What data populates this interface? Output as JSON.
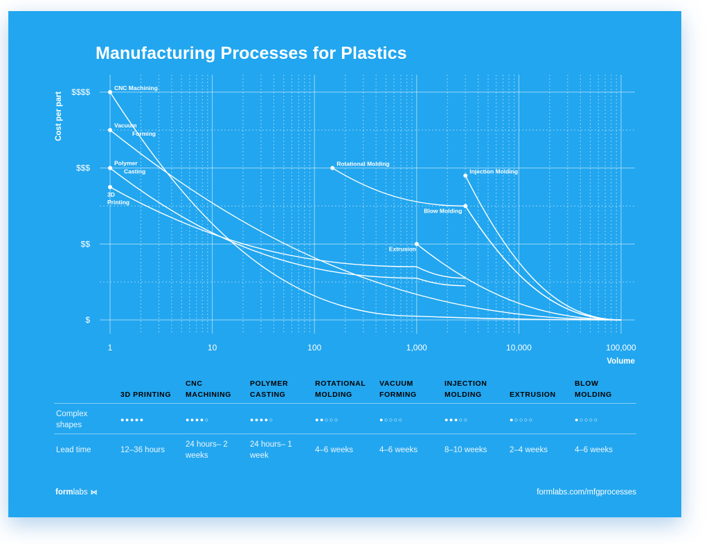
{
  "chart_data": {
    "type": "line",
    "title": "Manufacturing Processes for Plastics",
    "xlabel": "Volume",
    "ylabel": "Cost per part",
    "x_scale": "log",
    "xlim": [
      1,
      100000
    ],
    "x_ticks": [
      1,
      10,
      100,
      1000,
      10000,
      100000
    ],
    "x_tick_labels": [
      "1",
      "10",
      "100",
      "1,000",
      "10,000",
      "100,000"
    ],
    "y_ticks": [
      1,
      2,
      3,
      4
    ],
    "y_tick_labels": [
      "$",
      "$$",
      "$$$",
      "$$$$"
    ],
    "ylim": [
      1,
      4
    ],
    "grid": true,
    "series": [
      {
        "name": "CNC Machining",
        "points": [
          [
            1,
            4.0
          ],
          [
            1000,
            1.05
          ],
          [
            100000,
            1.0
          ]
        ]
      },
      {
        "name": "Vacuum Forming",
        "points": [
          [
            1,
            3.5
          ],
          [
            100000,
            1.0
          ]
        ]
      },
      {
        "name": "Polymer Casting",
        "points": [
          [
            1,
            3.0
          ],
          [
            1000,
            1.55
          ],
          [
            3000,
            1.45
          ]
        ]
      },
      {
        "name": "3D Printing",
        "points": [
          [
            1,
            2.75
          ],
          [
            1000,
            1.7
          ],
          [
            3000,
            1.55
          ]
        ]
      },
      {
        "name": "Rotational Molding",
        "points": [
          [
            150,
            3.0
          ],
          [
            3000,
            2.5
          ],
          [
            100000,
            1.0
          ]
        ]
      },
      {
        "name": "Injection Molding",
        "points": [
          [
            3000,
            2.9
          ],
          [
            100000,
            1.0
          ]
        ]
      },
      {
        "name": "Blow Molding",
        "points": [
          [
            3000,
            2.5
          ],
          [
            100000,
            1.0
          ]
        ]
      },
      {
        "name": "Extrusion",
        "points": [
          [
            1000,
            2.0
          ],
          [
            100000,
            1.0
          ]
        ]
      }
    ]
  },
  "table": {
    "columns": [
      "3D PRINTING",
      "CNC MACHINING",
      "POLYMER CASTING",
      "ROTATIONAL MOLDING",
      "VACUUM FORMING",
      "INJECTION MOLDING",
      "EXTRUSION",
      "BLOW MOLDING"
    ],
    "complex_label": "Complex shapes",
    "complex_dots": [
      "●●●●●",
      "●●●●○",
      "●●●●○",
      "●●○○○",
      "●○○○○",
      "●●●○○",
      "●○○○○",
      "●○○○○"
    ],
    "lead_label": "Lead time",
    "lead_times": [
      "12–36 hours",
      "24 hours– 2 weeks",
      "24 hours– 1 week",
      "4–6 weeks",
      "4–6 weeks",
      "8–10 weeks",
      "2–4 weeks",
      "4–6 weeks"
    ]
  },
  "footer": {
    "brand_bold": "form",
    "brand_light": "labs",
    "url": "formlabs.com/mfgprocesses"
  }
}
